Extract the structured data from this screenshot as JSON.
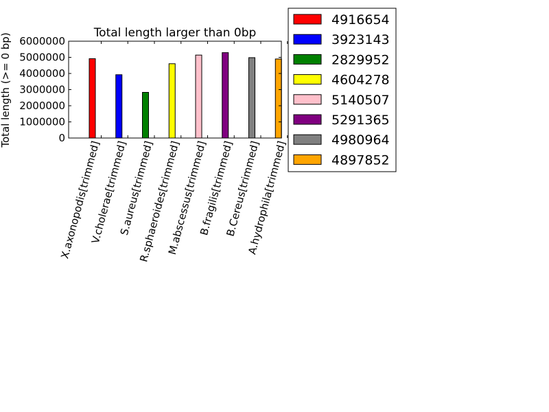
{
  "chart_data": {
    "type": "bar",
    "title": "Total length larger than 0bp",
    "ylabel": "Total length (>= 0 bp)",
    "xlabel": "",
    "ylim": [
      0,
      6000000
    ],
    "yticks": [
      0,
      1000000,
      2000000,
      3000000,
      4000000,
      5000000,
      6000000
    ],
    "ytick_labels": [
      "0",
      "1000000",
      "2000000",
      "3000000",
      "4000000",
      "5000000",
      "6000000"
    ],
    "categories": [
      "X.axonopodis[trimmed]",
      "V.cholerae[trimmed]",
      "S.aureus[trimmed]",
      "R.sphaeroides[trimmed]",
      "M.abscessus[trimmed]",
      "B.fragilis[trimmed]",
      "B.Cereus[trimmed]",
      "A.hydrophila[trimmed]"
    ],
    "values": [
      4916654,
      3923143,
      2829952,
      4604278,
      5140507,
      5291365,
      4980964,
      4897852
    ],
    "colors": [
      "#ff0000",
      "#0000ff",
      "#008000",
      "#ffff00",
      "#ffc0cb",
      "#800080",
      "#808080",
      "#ffa500"
    ],
    "legend_labels": [
      "4916654",
      "3923143",
      "2829952",
      "4604278",
      "5140507",
      "5291365",
      "4980964",
      "4897852"
    ],
    "legend_position": "outside-right-top",
    "grid": false
  }
}
